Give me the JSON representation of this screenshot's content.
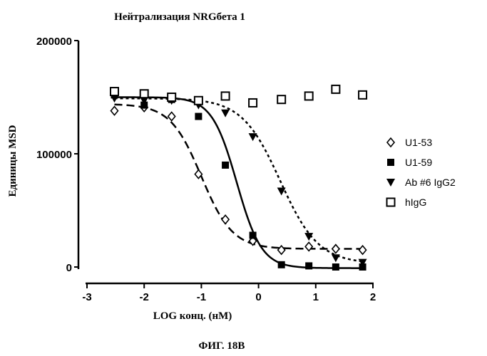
{
  "chart_data": {
    "type": "scatter",
    "title": "Нейтрализация NRGбета 1",
    "xlabel": "LOG конц. (нМ)",
    "ylabel": "Единицы MSD",
    "xlim": [
      -3,
      2
    ],
    "ylim": [
      0,
      200000
    ],
    "x_ticks": [
      "-3",
      "-2",
      "-1",
      "0",
      "1",
      "2"
    ],
    "y_ticks": [
      "0",
      "100000",
      "200000"
    ],
    "legend_position": "right",
    "series": [
      {
        "name": "U1-53",
        "marker": "diamond-open",
        "line": "long-dash",
        "x": [
          -2.52,
          -2.0,
          -1.52,
          -1.05,
          -0.58,
          -0.1,
          0.4,
          0.88,
          1.35,
          1.82
        ],
        "y": [
          138000,
          141000,
          133000,
          82000,
          42000,
          23000,
          15000,
          18000,
          16000,
          15000
        ]
      },
      {
        "name": "U1-59",
        "marker": "square-filled",
        "line": "solid",
        "x": [
          -2.52,
          -2.0,
          -1.52,
          -1.05,
          -0.58,
          -0.1,
          0.4,
          0.88,
          1.35,
          1.82
        ],
        "y": [
          152000,
          143000,
          148000,
          133000,
          90000,
          28000,
          2000,
          1000,
          0,
          0
        ]
      },
      {
        "name": "Ab #6 IgG2",
        "marker": "triangle-down-filled",
        "line": "short-dash",
        "x": [
          -2.52,
          -2.0,
          -1.52,
          -1.05,
          -0.58,
          -0.1,
          0.4,
          0.88,
          1.35,
          1.82
        ],
        "y": [
          149000,
          147000,
          147000,
          143000,
          136000,
          115000,
          67000,
          27000,
          8000,
          4000
        ]
      },
      {
        "name": "hIgG",
        "marker": "square-open",
        "line": "none",
        "x": [
          -2.52,
          -2.0,
          -1.52,
          -1.05,
          -0.58,
          -0.1,
          0.4,
          0.88,
          1.35,
          1.82
        ],
        "y": [
          155000,
          153000,
          150000,
          147000,
          151000,
          145000,
          148000,
          151000,
          157000,
          152000
        ]
      }
    ],
    "fits": {
      "U1-53": {
        "top": 144000,
        "bottom": 16000,
        "logEC50": -1.0,
        "hill": -1.6
      },
      "U1-59": {
        "top": 150000,
        "bottom": -1000,
        "logEC50": -0.38,
        "hill": -2.0
      },
      "Ab #6 IgG2": {
        "top": 149000,
        "bottom": 3000,
        "logEC50": 0.38,
        "hill": -1.3
      }
    }
  },
  "caption": "ФИГ. 18В",
  "colors": {
    "ink": "#000000",
    "background": "#ffffff"
  }
}
